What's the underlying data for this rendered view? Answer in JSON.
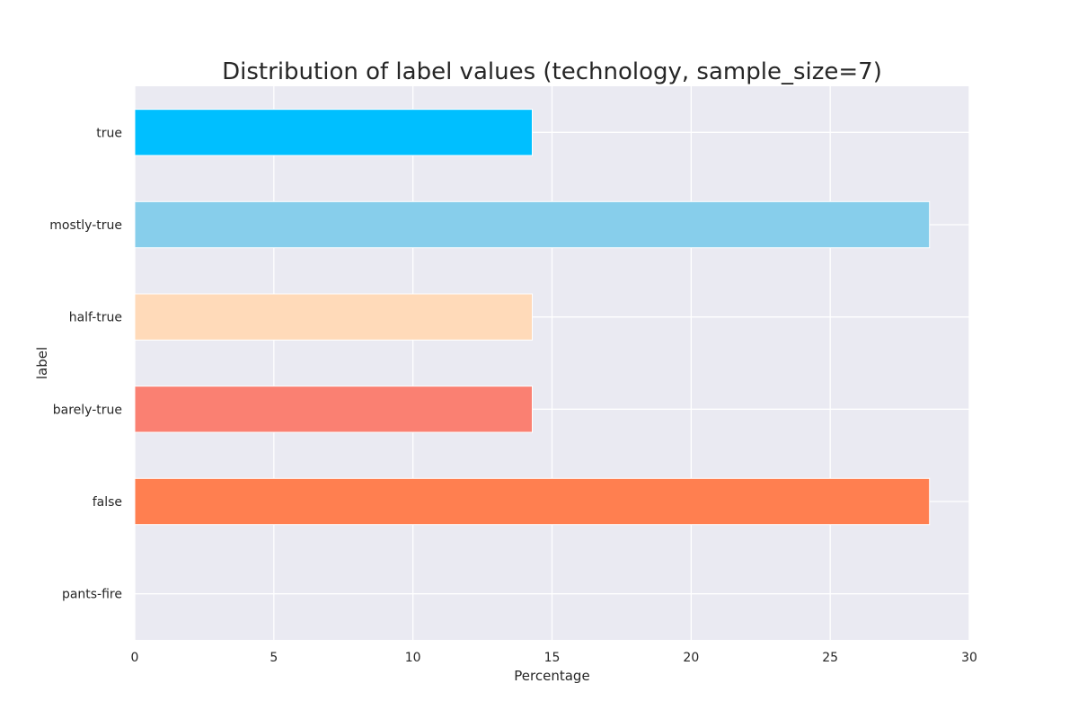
{
  "chart_data": {
    "type": "bar",
    "orientation": "horizontal",
    "title": "Distribution of label values (technology, sample_size=7)",
    "xlabel": "Percentage",
    "ylabel": "label",
    "xlim": [
      0,
      30
    ],
    "xticks": [
      0,
      5,
      10,
      15,
      20,
      25,
      30
    ],
    "grid": true,
    "categories": [
      "true",
      "mostly-true",
      "half-true",
      "barely-true",
      "false",
      "pants-fire"
    ],
    "values": [
      14.29,
      28.57,
      14.29,
      14.29,
      28.57,
      0
    ],
    "colors": [
      "#00BFFF",
      "#87CEEB",
      "#FFDAB9",
      "#FA8072",
      "#FF7F50",
      "#FF4500"
    ],
    "background_color": "#EAEAF2",
    "grid_color": "#FFFFFF"
  }
}
